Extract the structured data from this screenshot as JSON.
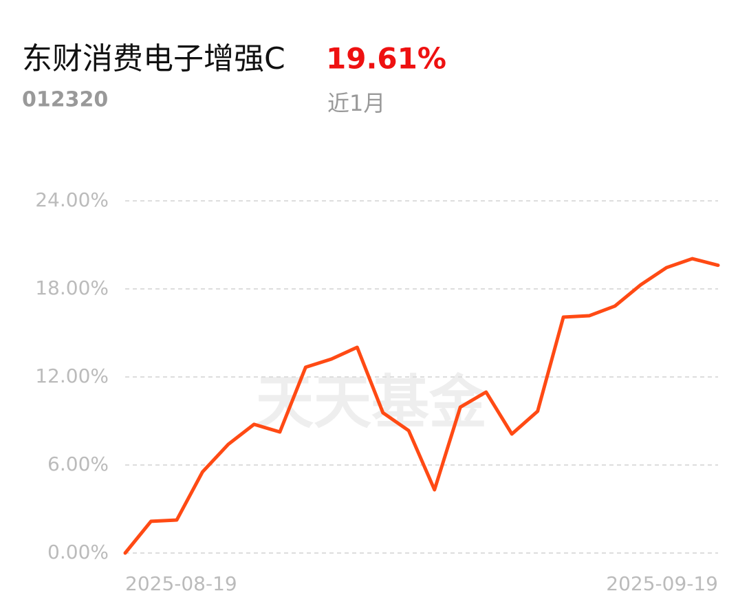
{
  "chart_data": {
    "type": "line",
    "title": "东财消费电子增强C",
    "code": "012320",
    "return": "19.61%",
    "period": "近1月",
    "watermark": "天天基金",
    "categories": [
      "2025-08-19",
      null,
      null,
      null,
      null,
      null,
      null,
      null,
      null,
      null,
      null,
      null,
      null,
      null,
      null,
      null,
      null,
      null,
      null,
      null,
      null,
      null,
      null,
      "2025-09-19"
    ],
    "series": [
      {
        "color": "#ff4a14",
        "values": [
          0,
          2.16,
          2.25,
          5.53,
          7.41,
          8.77,
          8.25,
          12.66,
          13.22,
          14.02,
          9.56,
          8.34,
          4.31,
          9.94,
          10.97,
          8.11,
          9.66,
          16.08,
          16.17,
          16.83,
          18.28,
          19.45,
          20.06,
          19.61
        ]
      }
    ],
    "ylim": [
      0,
      24
    ],
    "yticks": [
      {
        "value": 0,
        "label": "0.00%"
      },
      {
        "value": 6,
        "label": "6.00%"
      },
      {
        "value": 12,
        "label": "12.00%"
      },
      {
        "value": 18,
        "label": "18.00%"
      },
      {
        "value": 24,
        "label": "24.00%"
      }
    ],
    "grid": true
  }
}
